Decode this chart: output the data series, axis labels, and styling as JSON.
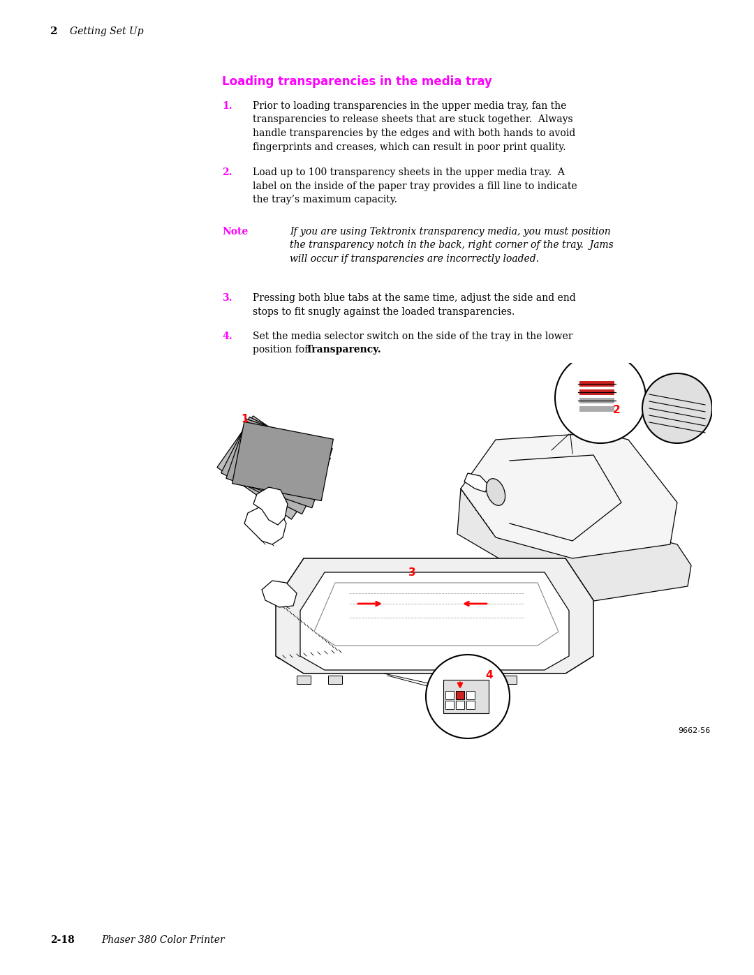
{
  "page_width": 10.8,
  "page_height": 13.97,
  "bg_color": "#ffffff",
  "header_num": "2",
  "header_text": "Getting Set Up",
  "section_title": "Loading transparencies in the media tray",
  "section_title_color": "#ff00ff",
  "steps": [
    {
      "num": "1.",
      "num_color": "#ff00ff",
      "lines": [
        "Prior to loading transparencies in the upper media tray, fan the",
        "transparencies to release sheets that are stuck together.  Always",
        "handle transparencies by the edges and with both hands to avoid",
        "fingerprints and creases, which can result in poor print quality."
      ],
      "italic": false,
      "bold_prefix": false
    },
    {
      "num": "2.",
      "num_color": "#ff00ff",
      "lines": [
        "Load up to 100 transparency sheets in the upper media tray.  A",
        "label on the inside of the paper tray provides a fill line to indicate",
        "the tray’s maximum capacity."
      ],
      "italic": false,
      "bold_prefix": false
    },
    {
      "num": "Note",
      "num_color": "#ff00ff",
      "lines": [
        "If you are using Tektronix transparency media, you must position",
        "the transparency notch in the back, right corner of the tray.  Jams",
        "will occur if transparencies are incorrectly loaded."
      ],
      "italic": true,
      "bold_prefix": false
    },
    {
      "num": "3.",
      "num_color": "#ff00ff",
      "lines": [
        "Pressing both blue tabs at the same time, adjust the side and end",
        "stops to fit snugly against the loaded transparencies."
      ],
      "italic": false,
      "bold_prefix": false
    },
    {
      "num": "4.",
      "num_color": "#ff00ff",
      "lines": [
        "Set the media selector switch on the side of the tray in the lower",
        "position for ​Transparency."
      ],
      "italic": false,
      "bold_word": "Transparency.",
      "bold_prefix": false
    }
  ],
  "footer_page": "2-18",
  "footer_text": "Phaser 380 Color Printer",
  "image_ref": "9662-56"
}
